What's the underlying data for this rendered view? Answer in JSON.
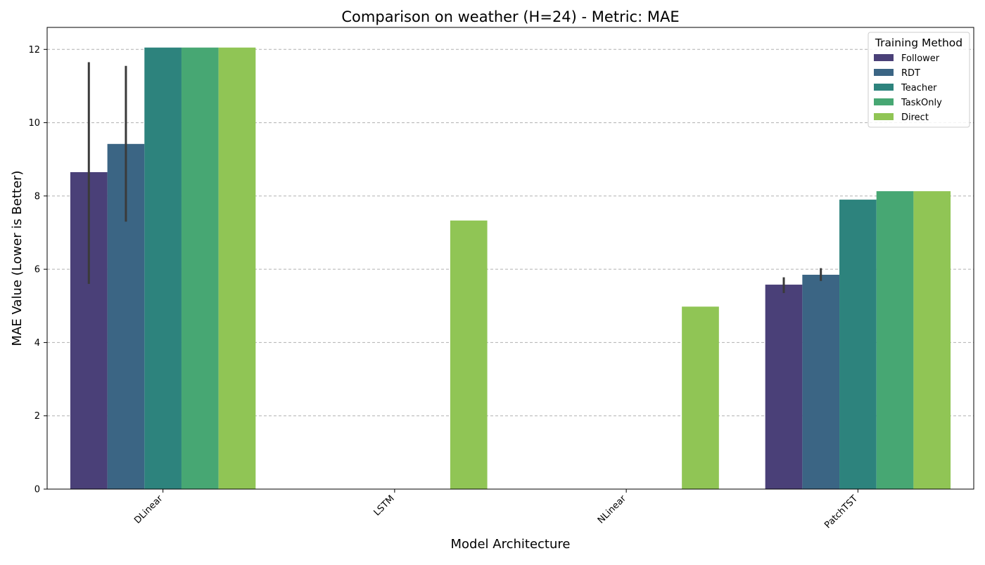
{
  "chart_data": {
    "type": "bar",
    "title": "Comparison on weather (H=24) - Metric: MAE",
    "xlabel": "Model Architecture",
    "ylabel": "MAE Value (Lower is Better)",
    "categories": [
      "DLinear",
      "LSTM",
      "NLinear",
      "PatchTST"
    ],
    "ylim": [
      0,
      12.6
    ],
    "yticks": [
      0,
      2,
      4,
      6,
      8,
      10,
      12
    ],
    "grid": true,
    "legend": {
      "title": "Training Method",
      "placement": "top-right"
    },
    "series": [
      {
        "name": "Follower",
        "color": "#4a4078",
        "values": [
          8.65,
          null,
          null,
          5.58
        ],
        "error_low": [
          5.6,
          null,
          null,
          5.35
        ],
        "error_high": [
          11.65,
          null,
          null,
          5.78
        ]
      },
      {
        "name": "RDT",
        "color": "#3b6584",
        "values": [
          9.42,
          null,
          null,
          5.85
        ],
        "error_low": [
          7.3,
          null,
          null,
          5.68
        ],
        "error_high": [
          11.55,
          null,
          null,
          6.03
        ]
      },
      {
        "name": "Teacher",
        "color": "#2d837d",
        "values": [
          12.05,
          null,
          null,
          7.9
        ],
        "error_low": [
          null,
          null,
          null,
          null
        ],
        "error_high": [
          null,
          null,
          null,
          null
        ]
      },
      {
        "name": "TaskOnly",
        "color": "#47a773",
        "values": [
          12.05,
          null,
          null,
          8.13
        ],
        "error_low": [
          null,
          null,
          null,
          null
        ],
        "error_high": [
          null,
          null,
          null,
          null
        ]
      },
      {
        "name": "Direct",
        "color": "#90c555",
        "values": [
          12.05,
          7.33,
          4.98,
          8.13
        ],
        "error_low": [
          null,
          null,
          null,
          null
        ],
        "error_high": [
          null,
          null,
          null,
          null
        ]
      }
    ]
  }
}
